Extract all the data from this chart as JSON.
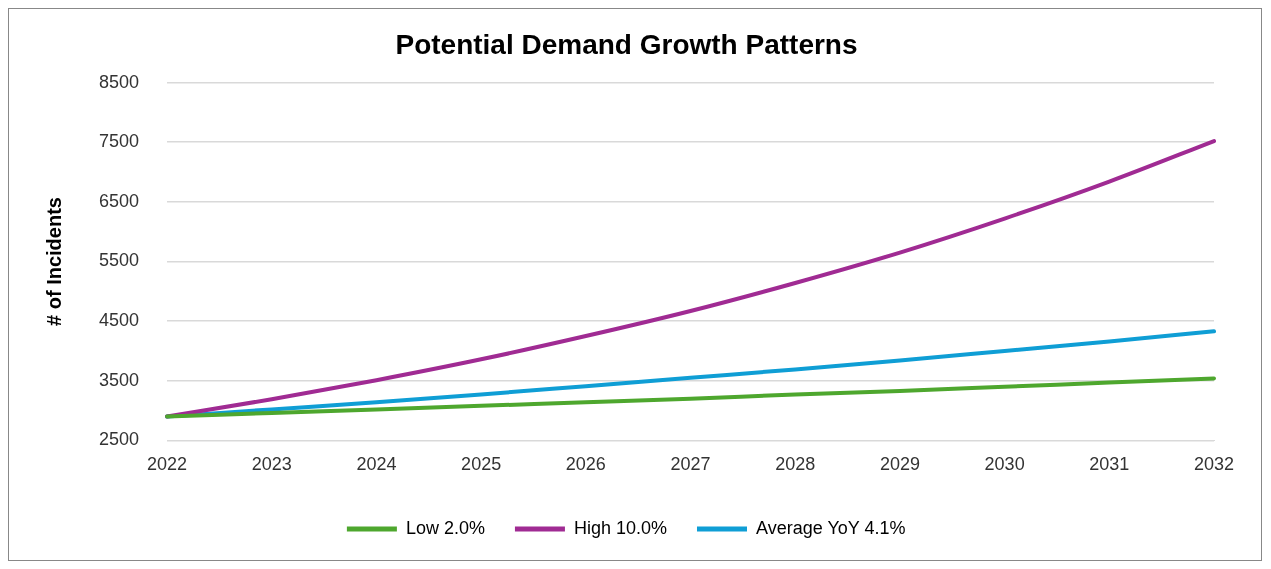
{
  "chart_data": {
    "type": "line",
    "title": "Potential Demand Growth Patterns",
    "ylabel": "# of Incidents",
    "categories": [
      "2022",
      "2023",
      "2024",
      "2025",
      "2026",
      "2027",
      "2028",
      "2029",
      "2030",
      "2031",
      "2032"
    ],
    "series": [
      {
        "name": "Low 2.0%",
        "color": "#4ea72e",
        "values": [
          2900,
          2960,
          3020,
          3080,
          3140,
          3200,
          3270,
          3330,
          3400,
          3470,
          3540
        ]
      },
      {
        "name": "High 10.0%",
        "color": "#a02b93",
        "values": [
          2900,
          3190,
          3510,
          3860,
          4250,
          4670,
          5140,
          5650,
          6220,
          6840,
          7520
        ]
      },
      {
        "name": "Average YoY 4.1%",
        "color": "#0f9ed5",
        "values": [
          2900,
          3020,
          3140,
          3270,
          3410,
          3550,
          3690,
          3840,
          4000,
          4160,
          4330
        ]
      }
    ],
    "ylim": [
      2500,
      8500
    ],
    "yticks": [
      2500,
      3500,
      4500,
      5500,
      6500,
      7500,
      8500
    ],
    "grid": "y",
    "legend": "bottom",
    "marker": "none",
    "line_style": "solid"
  }
}
